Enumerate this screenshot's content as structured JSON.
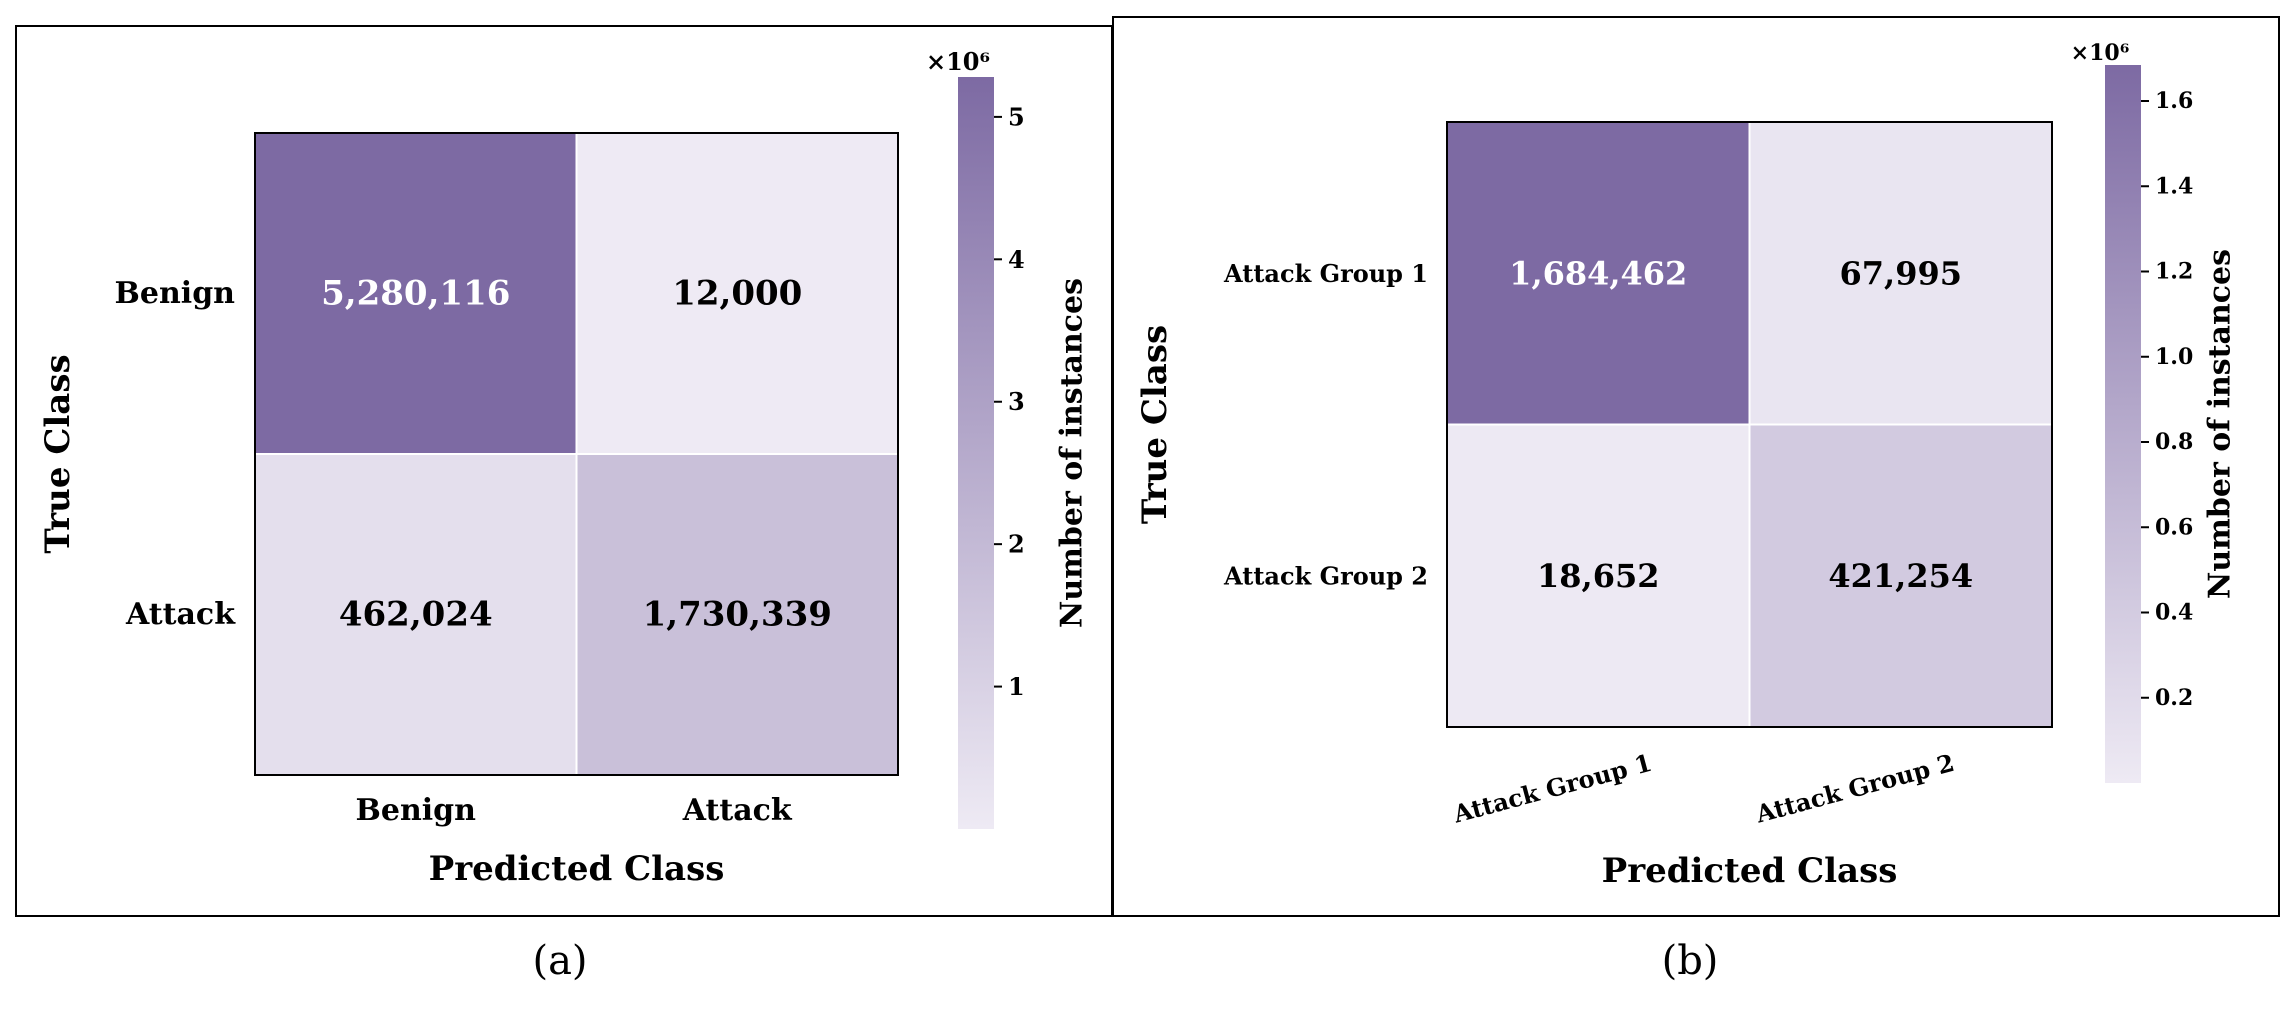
{
  "panels": [
    {
      "caption": "(a)",
      "chart_data": {
        "type": "heatmap",
        "xlabel": "Predicted Class",
        "ylabel": "True Class",
        "x_categories": [
          "Benign",
          "Attack"
        ],
        "y_categories": [
          "Benign",
          "Attack"
        ],
        "matrix": [
          [
            5280116,
            12000
          ],
          [
            462024,
            1730339
          ]
        ],
        "cell_labels": [
          [
            "5,280,116",
            "12,000"
          ],
          [
            "462,024",
            "1,730,339"
          ]
        ],
        "colorbar": {
          "label": "Number of instances",
          "multiplier": "×10⁶",
          "ticks": [
            "1",
            "2",
            "3",
            "4",
            "5"
          ],
          "tick_values": [
            1,
            2,
            3,
            4,
            5
          ],
          "range": [
            0,
            5.280116
          ]
        },
        "colormap": [
          "#eeeaf4",
          "#7d6aa3"
        ]
      }
    },
    {
      "caption": "(b)",
      "chart_data": {
        "type": "heatmap",
        "xlabel": "Predicted Class",
        "ylabel": "True Class",
        "x_categories": [
          "Attack Group 1",
          "Attack Group 2"
        ],
        "y_categories": [
          "Attack Group 1",
          "Attack Group 2"
        ],
        "matrix": [
          [
            1684462,
            67995
          ],
          [
            18652,
            421254
          ]
        ],
        "cell_labels": [
          [
            "1,684,462",
            "67,995"
          ],
          [
            "18,652",
            "421,254"
          ]
        ],
        "colorbar": {
          "label": "Number of instances",
          "multiplier": "×10⁶",
          "ticks": [
            "0.2",
            "0.4",
            "0.6",
            "0.8",
            "1.0",
            "1.2",
            "1.4",
            "1.6"
          ],
          "tick_values": [
            0.2,
            0.4,
            0.6,
            0.8,
            1.0,
            1.2,
            1.4,
            1.6
          ],
          "range": [
            0,
            1.684462
          ]
        },
        "colormap": [
          "#eeeaf4",
          "#7d6aa3"
        ]
      }
    }
  ]
}
